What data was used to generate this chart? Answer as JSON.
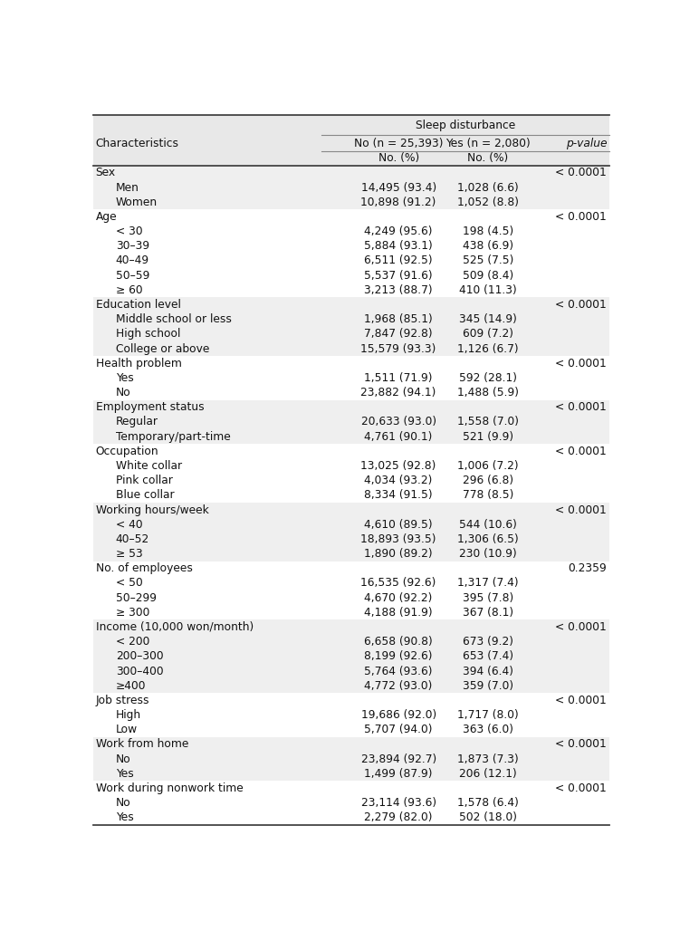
{
  "title": "Sleep disturbance",
  "col1_header": "Characteristics",
  "col2_header": "No (n = 25,393)",
  "col3_header": "Yes (n = 2,080)",
  "col4_header": "p-value",
  "col2_subheader": "No. (%)",
  "col3_subheader": "No. (%)",
  "rows": [
    {
      "label": "Sex",
      "col2": "",
      "col3": "",
      "col4": "< 0.0001",
      "indent": 0,
      "shaded": true
    },
    {
      "label": "Men",
      "col2": "14,495 (93.4)",
      "col3": "1,028 (6.6)",
      "col4": "",
      "indent": 1,
      "shaded": true
    },
    {
      "label": "Women",
      "col2": "10,898 (91.2)",
      "col3": "1,052 (8.8)",
      "col4": "",
      "indent": 1,
      "shaded": true
    },
    {
      "label": "Age",
      "col2": "",
      "col3": "",
      "col4": "< 0.0001",
      "indent": 0,
      "shaded": false
    },
    {
      "label": "< 30",
      "col2": "4,249 (95.6)",
      "col3": "198 (4.5)",
      "col4": "",
      "indent": 1,
      "shaded": false
    },
    {
      "label": "30–39",
      "col2": "5,884 (93.1)",
      "col3": "438 (6.9)",
      "col4": "",
      "indent": 1,
      "shaded": false
    },
    {
      "label": "40–49",
      "col2": "6,511 (92.5)",
      "col3": "525 (7.5)",
      "col4": "",
      "indent": 1,
      "shaded": false
    },
    {
      "label": "50–59",
      "col2": "5,537 (91.6)",
      "col3": "509 (8.4)",
      "col4": "",
      "indent": 1,
      "shaded": false
    },
    {
      "label": "≥ 60",
      "col2": "3,213 (88.7)",
      "col3": "410 (11.3)",
      "col4": "",
      "indent": 1,
      "shaded": false
    },
    {
      "label": "Education level",
      "col2": "",
      "col3": "",
      "col4": "< 0.0001",
      "indent": 0,
      "shaded": true
    },
    {
      "label": "Middle school or less",
      "col2": "1,968 (85.1)",
      "col3": "345 (14.9)",
      "col4": "",
      "indent": 1,
      "shaded": true
    },
    {
      "label": "High school",
      "col2": "7,847 (92.8)",
      "col3": "609 (7.2)",
      "col4": "",
      "indent": 1,
      "shaded": true
    },
    {
      "label": "College or above",
      "col2": "15,579 (93.3)",
      "col3": "1,126 (6.7)",
      "col4": "",
      "indent": 1,
      "shaded": true
    },
    {
      "label": "Health problem",
      "col2": "",
      "col3": "",
      "col4": "< 0.0001",
      "indent": 0,
      "shaded": false
    },
    {
      "label": "Yes",
      "col2": "1,511 (71.9)",
      "col3": "592 (28.1)",
      "col4": "",
      "indent": 1,
      "shaded": false
    },
    {
      "label": "No",
      "col2": "23,882 (94.1)",
      "col3": "1,488 (5.9)",
      "col4": "",
      "indent": 1,
      "shaded": false
    },
    {
      "label": "Employment status",
      "col2": "",
      "col3": "",
      "col4": "< 0.0001",
      "indent": 0,
      "shaded": true
    },
    {
      "label": "Regular",
      "col2": "20,633 (93.0)",
      "col3": "1,558 (7.0)",
      "col4": "",
      "indent": 1,
      "shaded": true
    },
    {
      "label": "Temporary/part-time",
      "col2": "4,761 (90.1)",
      "col3": "521 (9.9)",
      "col4": "",
      "indent": 1,
      "shaded": true
    },
    {
      "label": "Occupation",
      "col2": "",
      "col3": "",
      "col4": "< 0.0001",
      "indent": 0,
      "shaded": false
    },
    {
      "label": "White collar",
      "col2": "13,025 (92.8)",
      "col3": "1,006 (7.2)",
      "col4": "",
      "indent": 1,
      "shaded": false
    },
    {
      "label": "Pink collar",
      "col2": "4,034 (93.2)",
      "col3": "296 (6.8)",
      "col4": "",
      "indent": 1,
      "shaded": false
    },
    {
      "label": "Blue collar",
      "col2": "8,334 (91.5)",
      "col3": "778 (8.5)",
      "col4": "",
      "indent": 1,
      "shaded": false
    },
    {
      "label": "Working hours/week",
      "col2": "",
      "col3": "",
      "col4": "< 0.0001",
      "indent": 0,
      "shaded": true
    },
    {
      "label": "< 40",
      "col2": "4,610 (89.5)",
      "col3": "544 (10.6)",
      "col4": "",
      "indent": 1,
      "shaded": true
    },
    {
      "label": "40–52",
      "col2": "18,893 (93.5)",
      "col3": "1,306 (6.5)",
      "col4": "",
      "indent": 1,
      "shaded": true
    },
    {
      "label": "≥ 53",
      "col2": "1,890 (89.2)",
      "col3": "230 (10.9)",
      "col4": "",
      "indent": 1,
      "shaded": true
    },
    {
      "label": "No. of employees",
      "col2": "",
      "col3": "",
      "col4": "0.2359",
      "indent": 0,
      "shaded": false
    },
    {
      "label": "< 50",
      "col2": "16,535 (92.6)",
      "col3": "1,317 (7.4)",
      "col4": "",
      "indent": 1,
      "shaded": false
    },
    {
      "label": "50–299",
      "col2": "4,670 (92.2)",
      "col3": "395 (7.8)",
      "col4": "",
      "indent": 1,
      "shaded": false
    },
    {
      "label": "≥ 300",
      "col2": "4,188 (91.9)",
      "col3": "367 (8.1)",
      "col4": "",
      "indent": 1,
      "shaded": false
    },
    {
      "label": "Income (10,000 won/month)",
      "col2": "",
      "col3": "",
      "col4": "< 0.0001",
      "indent": 0,
      "shaded": true
    },
    {
      "label": "< 200",
      "col2": "6,658 (90.8)",
      "col3": "673 (9.2)",
      "col4": "",
      "indent": 1,
      "shaded": true
    },
    {
      "label": "200–300",
      "col2": "8,199 (92.6)",
      "col3": "653 (7.4)",
      "col4": "",
      "indent": 1,
      "shaded": true
    },
    {
      "label": "300–400",
      "col2": "5,764 (93.6)",
      "col3": "394 (6.4)",
      "col4": "",
      "indent": 1,
      "shaded": true
    },
    {
      "label": "≥400",
      "col2": "4,772 (93.0)",
      "col3": "359 (7.0)",
      "col4": "",
      "indent": 1,
      "shaded": true
    },
    {
      "label": "Job stress",
      "col2": "",
      "col3": "",
      "col4": "< 0.0001",
      "indent": 0,
      "shaded": false
    },
    {
      "label": "High",
      "col2": "19,686 (92.0)",
      "col3": "1,717 (8.0)",
      "col4": "",
      "indent": 1,
      "shaded": false
    },
    {
      "label": "Low",
      "col2": "5,707 (94.0)",
      "col3": "363 (6.0)",
      "col4": "",
      "indent": 1,
      "shaded": false
    },
    {
      "label": "Work from home",
      "col2": "",
      "col3": "",
      "col4": "< 0.0001",
      "indent": 0,
      "shaded": true
    },
    {
      "label": "No",
      "col2": "23,894 (92.7)",
      "col3": "1,873 (7.3)",
      "col4": "",
      "indent": 1,
      "shaded": true
    },
    {
      "label": "Yes",
      "col2": "1,499 (87.9)",
      "col3": "206 (12.1)",
      "col4": "",
      "indent": 1,
      "shaded": true
    },
    {
      "label": "Work during nonwork time",
      "col2": "",
      "col3": "",
      "col4": "< 0.0001",
      "indent": 0,
      "shaded": false
    },
    {
      "label": "No",
      "col2": "23,114 (93.6)",
      "col3": "1,578 (6.4)",
      "col4": "",
      "indent": 1,
      "shaded": false
    },
    {
      "label": "Yes",
      "col2": "2,279 (82.0)",
      "col3": "502 (18.0)",
      "col4": "",
      "indent": 1,
      "shaded": false
    }
  ],
  "header_bg": "#e8e8e8",
  "shaded_bg": "#efefef",
  "white_bg": "#ffffff",
  "text_color": "#111111",
  "line_color": "#888888",
  "border_color": "#444444",
  "font_size": 8.8
}
